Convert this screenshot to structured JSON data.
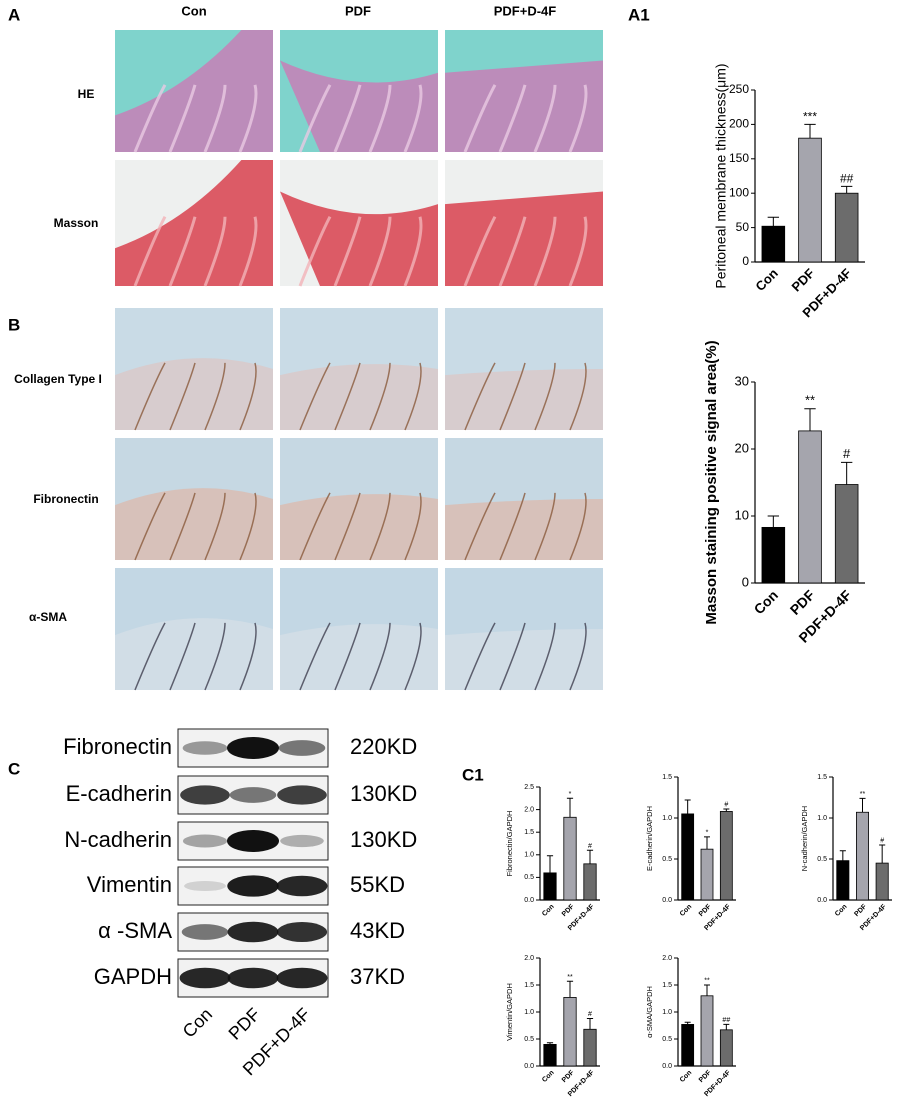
{
  "panels": {
    "A": "A",
    "A1": "A1",
    "B": "B",
    "C": "C",
    "C1": "C1"
  },
  "histology": {
    "columns": [
      "Con",
      "PDF",
      "PDF+D-4F"
    ],
    "rows_a": [
      "HE",
      "Masson"
    ],
    "rows_b": [
      "Collagen Type I",
      "Fibronectin",
      "α-SMA"
    ]
  },
  "western_blot": {
    "proteins": [
      {
        "name": "Fibronectin",
        "size": "220KD"
      },
      {
        "name": "E-cadherin",
        "size": "130KD"
      },
      {
        "name": "N-cadherin",
        "size": "130KD"
      },
      {
        "name": "Vimentin",
        "size": "55KD"
      },
      {
        "name": "α -SMA",
        "size": "43KD"
      },
      {
        "name": "GAPDH",
        "size": "37KD"
      }
    ],
    "lanes": [
      "Con",
      "PDF",
      "PDF+D-4F"
    ]
  },
  "chart_data": [
    {
      "type": "bar",
      "y_label": "Peritoneal membrane thickness(μm)",
      "categories": [
        "Con",
        "PDF",
        "PDF+D-4F"
      ],
      "values": [
        52,
        180,
        100
      ],
      "errors": [
        13,
        20,
        10
      ],
      "colors": [
        "#000000",
        "#a5a5ad",
        "#6c6c6c"
      ],
      "annotations": [
        null,
        "***",
        "##"
      ],
      "ylim": [
        0,
        250
      ],
      "yticks": [
        0,
        50,
        100,
        150,
        200,
        250
      ]
    },
    {
      "type": "bar",
      "y_label": "Masson staining positive signal area(%)",
      "categories": [
        "Con",
        "PDF",
        "PDF+D-4F"
      ],
      "values": [
        8.3,
        22.7,
        14.7
      ],
      "errors": [
        1.7,
        3.3,
        3.3
      ],
      "colors": [
        "#000000",
        "#a5a5ad",
        "#6c6c6c"
      ],
      "annotations": [
        null,
        "**",
        "#"
      ],
      "ylim": [
        0,
        30
      ],
      "yticks": [
        0,
        10,
        20,
        30
      ]
    },
    {
      "type": "bar",
      "y_label": "Fibronectin/GAPDH",
      "categories": [
        "Con",
        "PDF",
        "PDF+D-4F"
      ],
      "values": [
        0.6,
        1.83,
        0.8
      ],
      "errors": [
        0.38,
        0.42,
        0.3
      ],
      "colors": [
        "#000000",
        "#a5a5ad",
        "#6c6c6c"
      ],
      "annotations": [
        null,
        "*",
        "#"
      ],
      "ylim": [
        0,
        2.5
      ],
      "yticks": [
        {
          "value": 0,
          "label": "0.0"
        },
        0.5,
        {
          "value": 1,
          "label": "1.0"
        },
        1.5,
        {
          "value": 2,
          "label": "2.0"
        },
        2.5
      ]
    },
    {
      "type": "bar",
      "y_label": "E-cadherin/GAPDH",
      "categories": [
        "Con",
        "PDF",
        "PDF+D-4F"
      ],
      "values": [
        1.05,
        0.62,
        1.08
      ],
      "errors": [
        0.17,
        0.15,
        0.03
      ],
      "colors": [
        "#000000",
        "#a5a5ad",
        "#6c6c6c"
      ],
      "annotations": [
        null,
        "*",
        "#"
      ],
      "ylim": [
        0,
        1.5
      ],
      "yticks": [
        {
          "value": 0,
          "label": "0.0"
        },
        0.5,
        {
          "value": 1,
          "label": "1.0"
        },
        1.5
      ]
    },
    {
      "type": "bar",
      "y_label": "N-cadherin/GAPDH",
      "categories": [
        "Con",
        "PDF",
        "PDF+D-4F"
      ],
      "values": [
        0.48,
        1.07,
        0.45
      ],
      "errors": [
        0.12,
        0.17,
        0.22
      ],
      "colors": [
        "#000000",
        "#a5a5ad",
        "#6c6c6c"
      ],
      "annotations": [
        null,
        "**",
        "#"
      ],
      "ylim": [
        0,
        1.5
      ],
      "yticks": [
        {
          "value": 0,
          "label": "0.0"
        },
        0.5,
        {
          "value": 1,
          "label": "1.0"
        },
        1.5
      ]
    },
    {
      "type": "bar",
      "y_label": "Vimentin/GAPDH",
      "categories": [
        "Con",
        "PDF",
        "PDF+D-4F"
      ],
      "values": [
        0.4,
        1.27,
        0.68
      ],
      "errors": [
        0.03,
        0.3,
        0.2
      ],
      "colors": [
        "#000000",
        "#a5a5ad",
        "#6c6c6c"
      ],
      "annotations": [
        null,
        "**",
        "#"
      ],
      "ylim": [
        0,
        2
      ],
      "yticks": [
        {
          "value": 0,
          "label": "0.0"
        },
        0.5,
        {
          "value": 1,
          "label": "1.0"
        },
        1.5,
        {
          "value": 2,
          "label": "2.0"
        }
      ]
    },
    {
      "type": "bar",
      "y_label": "α-SMA/GAPDH",
      "categories": [
        "Con",
        "PDF",
        "PDF+D-4F"
      ],
      "values": [
        0.77,
        1.3,
        0.67
      ],
      "errors": [
        0.04,
        0.2,
        0.1
      ],
      "colors": [
        "#000000",
        "#a5a5ad",
        "#6c6c6c"
      ],
      "annotations": [
        null,
        "**",
        "##"
      ],
      "ylim": [
        0,
        2
      ],
      "yticks": [
        {
          "value": 0,
          "label": "0.0"
        },
        0.5,
        {
          "value": 1,
          "label": "1.0"
        },
        1.5,
        {
          "value": 2,
          "label": "2.0"
        }
      ]
    }
  ]
}
